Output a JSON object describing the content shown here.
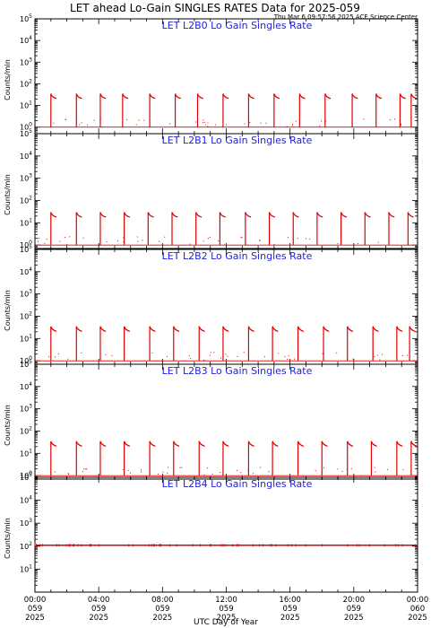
{
  "title": "LET ahead Lo-Gain SINGLES RATES Data for 2025-059",
  "timestamp": "Thu Mar  6 09:57:56 2025 ACE Science Center",
  "xlabel": "UTC Day of Year",
  "colors": {
    "trace": "#e00000",
    "panel_title": "#1f1fd6",
    "axis": "#000000"
  },
  "x_ticks": [
    {
      "time": "00:00",
      "doy": "059",
      "year": "2025"
    },
    {
      "time": "04:00",
      "doy": "059",
      "year": "2025"
    },
    {
      "time": "08:00",
      "doy": "059",
      "year": "2025"
    },
    {
      "time": "12:00",
      "doy": "059",
      "year": "2025"
    },
    {
      "time": "16:00",
      "doy": "059",
      "year": "2025"
    },
    {
      "time": "20:00",
      "doy": "059",
      "year": "2025"
    },
    {
      "time": "00:00",
      "doy": "060",
      "year": "2025"
    }
  ],
  "chart_data": [
    {
      "type": "line",
      "title": "LET L2B0 Lo Gain Singles Rate",
      "ylabel": "Counts/min",
      "y_scale": "log",
      "ylim": [
        0.5,
        100000
      ],
      "y_ticks": [
        "10^0",
        "10^1",
        "10^2",
        "10^3",
        "10^4",
        "10^5"
      ],
      "xlim_hours": [
        0,
        24
      ],
      "baseline": 1,
      "peak": 35,
      "burst_width_hours": 0.35,
      "bursts_start_hours": [
        1.0,
        2.6,
        4.1,
        5.5,
        7.2,
        8.8,
        10.2,
        11.8,
        13.4,
        15.0,
        16.6,
        18.2,
        19.9,
        21.4,
        22.9,
        23.6
      ]
    },
    {
      "type": "line",
      "title": "LET L2B1 Lo Gain Singles Rate",
      "ylabel": "Counts/min",
      "y_scale": "log",
      "ylim": [
        0.7,
        100000
      ],
      "y_ticks": [
        "10^0",
        "10^1",
        "10^2",
        "10^3",
        "10^4",
        "10^5"
      ],
      "xlim_hours": [
        0,
        24
      ],
      "baseline": 1,
      "peak": 30,
      "burst_width_hours": 0.35,
      "bursts_start_hours": [
        1.0,
        2.6,
        4.1,
        5.6,
        7.1,
        8.6,
        10.1,
        11.6,
        13.2,
        14.7,
        16.2,
        17.7,
        19.2,
        20.7,
        22.2,
        23.4
      ]
    },
    {
      "type": "line",
      "title": "LET L2B2 Lo Gain Singles Rate",
      "ylabel": "Counts/min",
      "y_scale": "log",
      "ylim": [
        0.7,
        100000
      ],
      "y_ticks": [
        "10^0",
        "10^1",
        "10^2",
        "10^3",
        "10^4",
        "10^5"
      ],
      "xlim_hours": [
        0,
        24
      ],
      "baseline": 1,
      "peak": 35,
      "burst_width_hours": 0.35,
      "bursts_start_hours": [
        1.0,
        2.6,
        4.1,
        5.6,
        7.2,
        8.7,
        10.3,
        11.8,
        13.4,
        14.9,
        16.5,
        18.1,
        19.6,
        21.2,
        22.7,
        23.5
      ]
    },
    {
      "type": "line",
      "title": "LET L2B3 Lo Gain Singles Rate",
      "ylabel": "Counts/min",
      "y_scale": "log",
      "ylim": [
        0.7,
        100000
      ],
      "y_ticks": [
        "10^0",
        "10^1",
        "10^2",
        "10^3",
        "10^4",
        "10^5"
      ],
      "xlim_hours": [
        0,
        24
      ],
      "baseline": 1,
      "peak": 35,
      "burst_width_hours": 0.35,
      "bursts_start_hours": [
        1.0,
        2.6,
        4.1,
        5.6,
        7.2,
        8.7,
        10.3,
        11.8,
        13.4,
        14.9,
        16.5,
        18.0,
        19.6,
        21.1,
        22.7,
        23.6
      ]
    },
    {
      "type": "line",
      "title": "LET L2B4 Lo Gain Singles Rate",
      "ylabel": "Counts/min",
      "y_scale": "log",
      "ylim": [
        1,
        100000
      ],
      "y_ticks": [
        "10^1",
        "10^2",
        "10^3",
        "10^4",
        "10^5"
      ],
      "xlim_hours": [
        0,
        24
      ],
      "baseline": 110,
      "peak": 110,
      "burst_width_hours": 0,
      "bursts_start_hours": []
    }
  ]
}
